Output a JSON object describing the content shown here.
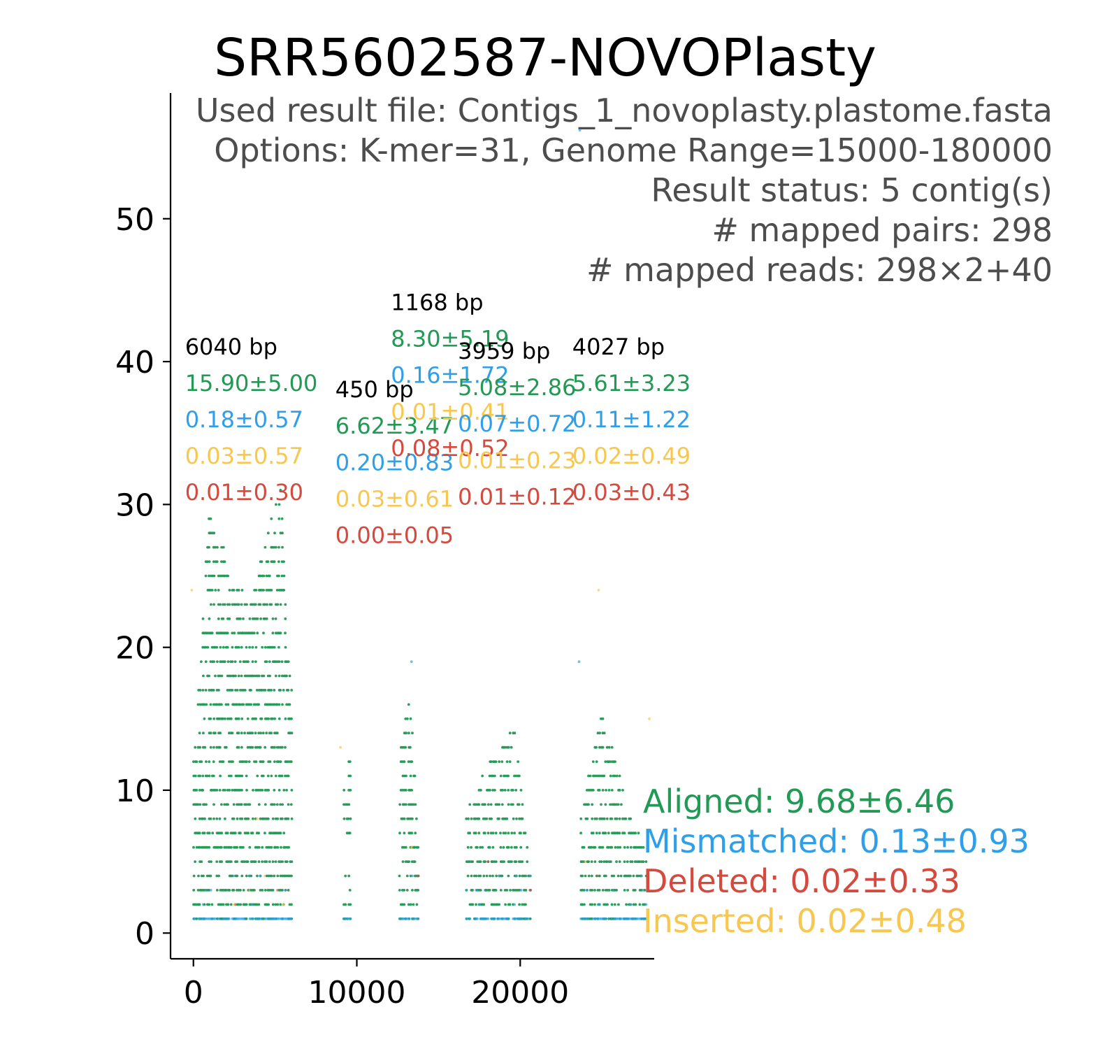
{
  "chart_data": {
    "type": "scatter",
    "title": "SRR5602587-NOVOPlasty",
    "info_lines": [
      "Used result file: Contigs_1_novoplasty.plastome.fasta",
      "Options: K-mer=31, Genome Range=15000-180000",
      "Result status: 5 contig(s)",
      "# mapped pairs: 298",
      "# mapped reads: 298×2+40"
    ],
    "xlabel": "",
    "ylabel": "",
    "xlim": [
      -1400,
      28200
    ],
    "ylim": [
      -1.8,
      58.8
    ],
    "x_ticks": [
      0,
      10000,
      20000
    ],
    "x_tick_labels": [
      "0",
      "10000",
      "20000"
    ],
    "y_ticks": [
      0,
      10,
      20,
      30,
      40,
      50
    ],
    "y_tick_labels": [
      "0",
      "10",
      "20",
      "30",
      "40",
      "50"
    ],
    "grid": false,
    "colors": {
      "aligned": "#229954",
      "mismatched": "#2e9fe8",
      "deleted": "#d44a3f",
      "inserted": "#f8c74f"
    },
    "legend": {
      "placement": "right-bottom",
      "entries": [
        {
          "key": "aligned",
          "text": "Aligned: 9.68±6.46"
        },
        {
          "key": "mismatched",
          "text": "Mismatched: 0.13±0.93"
        },
        {
          "key": "deleted",
          "text": "Deleted: 0.02±0.33"
        },
        {
          "key": "inserted",
          "text": "Inserted: 0.02±0.48"
        }
      ]
    },
    "contigs": [
      {
        "length_label": "6040 bp",
        "start": 0,
        "end": 6040,
        "aligned": "15.90±5.00",
        "mismatched": "0.18±0.57",
        "inserted": "0.03±0.57",
        "deleted": "0.01±0.30",
        "peaks": [
          [
            0,
            12
          ],
          [
            1000,
            30
          ],
          [
            2400,
            24
          ],
          [
            3500,
            23
          ],
          [
            5300,
            31
          ],
          [
            6040,
            16
          ]
        ]
      },
      {
        "length_label": "450 bp",
        "start": 9200,
        "end": 9650,
        "aligned": "6.62±3.47",
        "mismatched": "0.20±0.83",
        "inserted": "0.03±0.61",
        "deleted": "0.00±0.05",
        "peaks": [
          [
            9200,
            11
          ],
          [
            9650,
            12
          ]
        ]
      },
      {
        "length_label": "1168 bp",
        "start": 12600,
        "end": 13768,
        "aligned": "8.30±5.19",
        "mismatched": "0.16±1.72",
        "inserted": "0.01±0.41",
        "deleted": "0.08±0.52",
        "peaks": [
          [
            12600,
            12
          ],
          [
            13200,
            17
          ],
          [
            13768,
            7
          ]
        ]
      },
      {
        "length_label": "3959 bp",
        "start": 16700,
        "end": 20659,
        "aligned": "5.08±2.86",
        "mismatched": "0.07±0.72",
        "inserted": "0.01±0.23",
        "deleted": "0.01±0.12",
        "peaks": [
          [
            16700,
            8
          ],
          [
            17800,
            11
          ],
          [
            19600,
            14
          ],
          [
            20659,
            3
          ]
        ]
      },
      {
        "length_label": "4027 bp",
        "start": 23700,
        "end": 27727,
        "aligned": "5.61±3.23",
        "mismatched": "0.11±1.22",
        "inserted": "0.02±0.49",
        "deleted": "0.03±0.43",
        "peaks": [
          [
            23700,
            8
          ],
          [
            25000,
            15
          ],
          [
            26200,
            10
          ],
          [
            27727,
            5
          ]
        ]
      }
    ],
    "outliers": [
      {
        "type": "mismatched",
        "x": 23650,
        "y": 56.2
      },
      {
        "type": "inserted",
        "x": 24800,
        "y": 24
      },
      {
        "type": "inserted",
        "x": 27900,
        "y": 15
      },
      {
        "type": "mismatched",
        "x": 13350,
        "y": 19
      },
      {
        "type": "mismatched",
        "x": 23600,
        "y": 19
      },
      {
        "type": "inserted",
        "x": 9000,
        "y": 13
      },
      {
        "type": "inserted",
        "x": -100,
        "y": 24
      }
    ]
  }
}
